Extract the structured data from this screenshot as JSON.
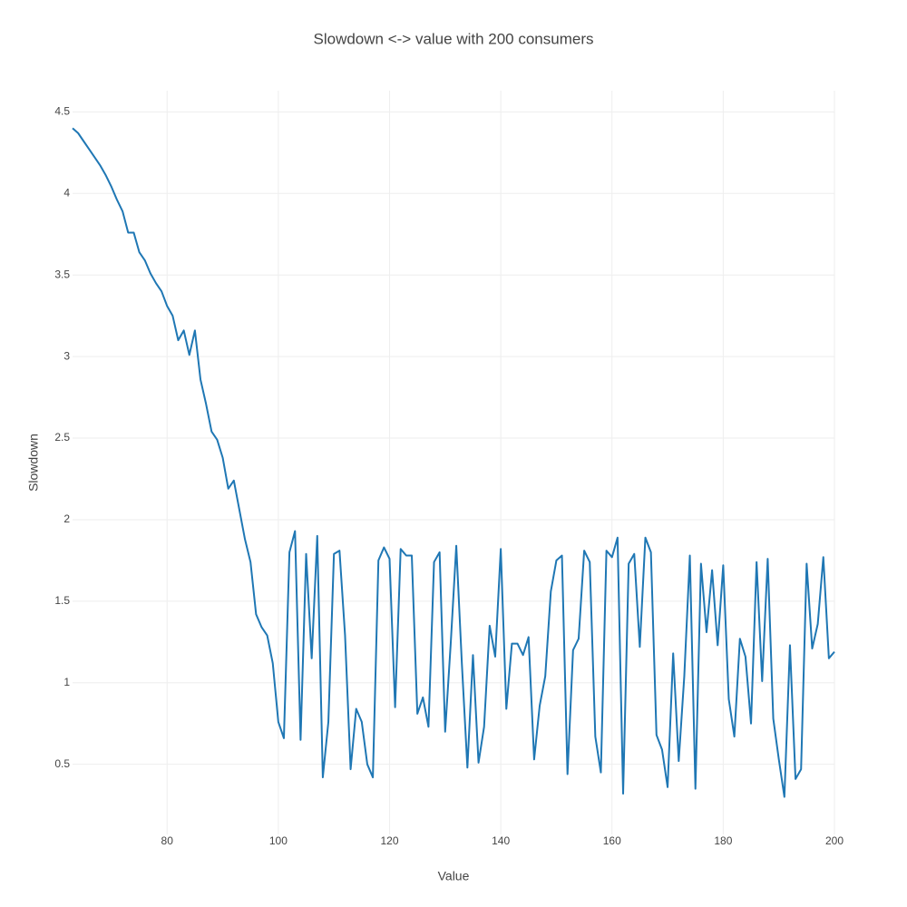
{
  "chart_data": {
    "type": "line",
    "title": "Slowdown <-> value with 200 consumers",
    "xlabel": "Value",
    "ylabel": "Slowdown",
    "x": [
      63,
      64,
      65,
      66,
      67,
      68,
      69,
      70,
      71,
      72,
      73,
      74,
      75,
      76,
      77,
      78,
      79,
      80,
      81,
      82,
      83,
      84,
      85,
      86,
      87,
      88,
      89,
      90,
      91,
      92,
      93,
      94,
      95,
      96,
      97,
      98,
      99,
      100,
      101,
      102,
      103,
      104,
      105,
      106,
      107,
      108,
      109,
      110,
      111,
      112,
      113,
      114,
      115,
      116,
      117,
      118,
      119,
      120,
      121,
      122,
      123,
      124,
      125,
      126,
      127,
      128,
      129,
      130,
      131,
      132,
      133,
      134,
      135,
      136,
      137,
      138,
      139,
      140,
      141,
      142,
      143,
      144,
      145,
      146,
      147,
      148,
      149,
      150,
      151,
      152,
      153,
      154,
      155,
      156,
      157,
      158,
      159,
      160,
      161,
      162,
      163,
      164,
      165,
      166,
      167,
      168,
      169,
      170,
      171,
      172,
      173,
      174,
      175,
      176,
      177,
      178,
      179,
      180,
      181,
      182,
      183,
      184,
      185,
      186,
      187,
      188,
      189,
      190,
      191,
      192,
      193,
      194,
      195,
      196,
      197,
      198,
      199,
      200
    ],
    "series": [
      {
        "name": "Slowdown",
        "color": "#1f77b4",
        "values": [
          4.4,
          4.37,
          4.32,
          4.27,
          4.22,
          4.17,
          4.11,
          4.04,
          3.96,
          3.89,
          3.76,
          3.76,
          3.64,
          3.59,
          3.51,
          3.45,
          3.4,
          3.31,
          3.25,
          3.1,
          3.16,
          3.01,
          3.16,
          2.86,
          2.71,
          2.54,
          2.49,
          2.38,
          2.19,
          2.24,
          2.06,
          1.88,
          1.74,
          1.42,
          1.34,
          1.29,
          1.12,
          0.76,
          0.66,
          1.8,
          1.93,
          0.65,
          1.79,
          1.15,
          1.9,
          0.42,
          0.76,
          1.79,
          1.81,
          1.29,
          0.47,
          0.84,
          0.76,
          0.5,
          0.42,
          1.75,
          1.83,
          1.76,
          0.85,
          1.82,
          1.78,
          1.78,
          0.81,
          0.91,
          0.73,
          1.74,
          1.8,
          0.7,
          1.24,
          1.84,
          1.12,
          0.48,
          1.17,
          0.51,
          0.73,
          1.35,
          1.16,
          1.82,
          0.84,
          1.24,
          1.24,
          1.17,
          1.28,
          0.53,
          0.86,
          1.04,
          1.56,
          1.75,
          1.78,
          0.44,
          1.2,
          1.27,
          1.81,
          1.74,
          0.67,
          0.45,
          1.81,
          1.77,
          1.89,
          0.32,
          1.73,
          1.79,
          1.22,
          1.89,
          1.8,
          0.68,
          0.59,
          0.36,
          1.18,
          0.52,
          1.04,
          1.78,
          0.35,
          1.73,
          1.31,
          1.69,
          1.23,
          1.72,
          0.9,
          0.67,
          1.27,
          1.16,
          0.75,
          1.74,
          1.01,
          1.76,
          0.78,
          0.53,
          0.3,
          1.23,
          0.41,
          0.47,
          1.73,
          1.21,
          1.36,
          1.77,
          1.15,
          1.19
        ]
      }
    ],
    "xlim": [
      63,
      200
    ],
    "ylim": [
      0.07,
      4.63
    ],
    "xticks": [
      80,
      100,
      120,
      140,
      160,
      180,
      200
    ],
    "yticks": [
      0.5,
      1,
      1.5,
      2,
      2.5,
      3,
      3.5,
      4,
      4.5
    ],
    "grid": true
  }
}
